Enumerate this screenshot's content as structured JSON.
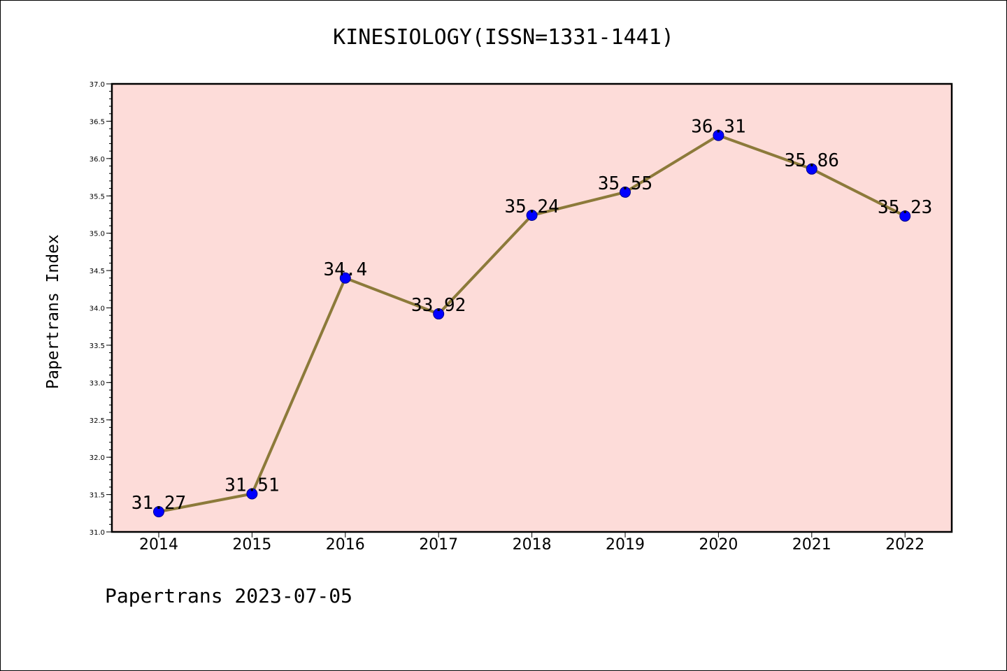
{
  "chart_data": {
    "type": "line",
    "title": "KINESIOLOGY(ISSN=1331-1441)",
    "xlabel": "",
    "ylabel": "Papertrans Index",
    "categories": [
      "2014",
      "2015",
      "2016",
      "2017",
      "2018",
      "2019",
      "2020",
      "2021",
      "2022"
    ],
    "values": [
      31.27,
      31.51,
      34.4,
      33.92,
      35.24,
      35.55,
      36.31,
      35.86,
      35.23
    ],
    "data_labels": [
      "31.27",
      "31.51",
      "34.4",
      "33.92",
      "35.24",
      "35.55",
      "36.31",
      "35.86",
      "35.23"
    ],
    "ylim": [
      31.0,
      37.0
    ],
    "yticks": [
      "31.0",
      "31.5",
      "32.0",
      "32.5",
      "33.0",
      "33.5",
      "34.0",
      "34.5",
      "35.0",
      "35.5",
      "36.0",
      "36.5",
      "37.0"
    ],
    "grid": false,
    "colors": {
      "plot_background": "#fddcd9",
      "line": "#8c7a3a",
      "marker": "#0000ff"
    }
  },
  "footer": "Papertrans 2023-07-05"
}
